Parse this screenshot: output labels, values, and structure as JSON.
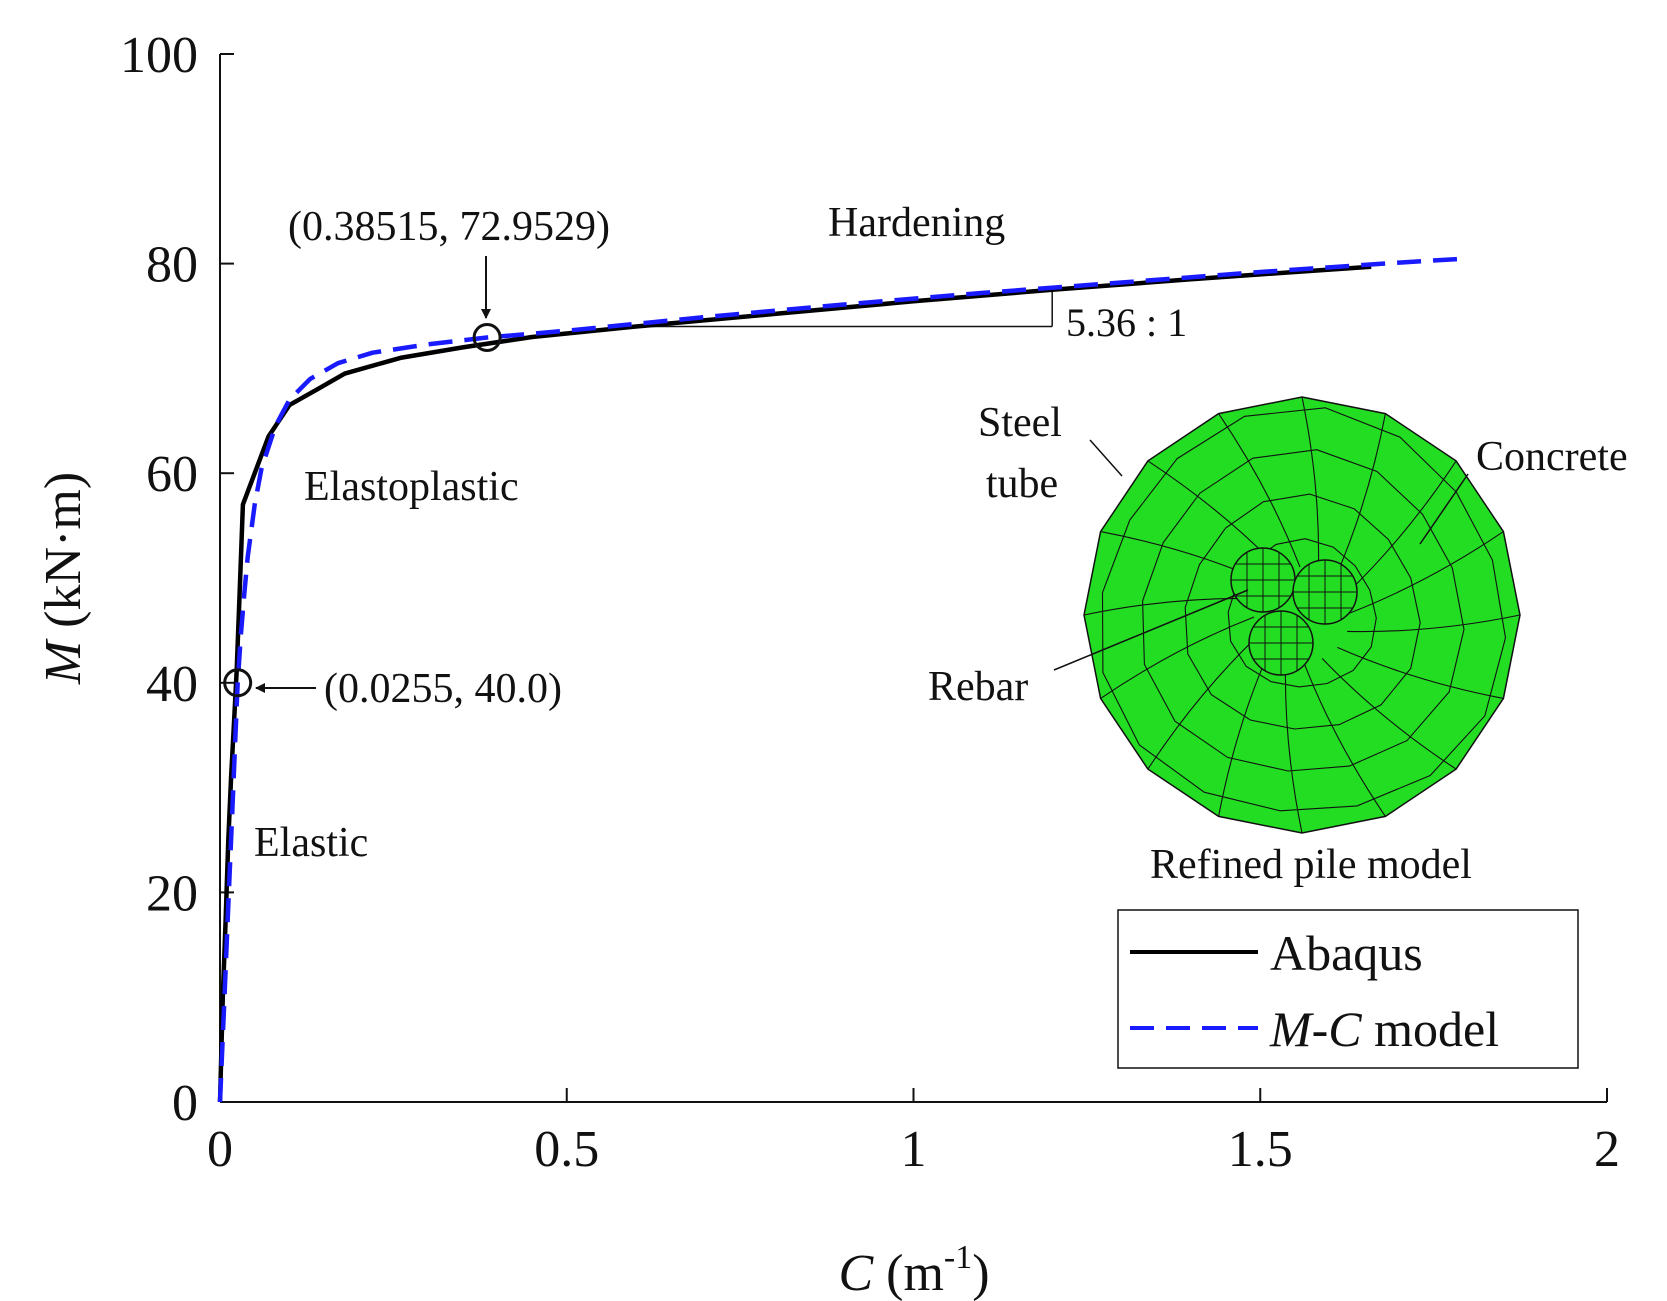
{
  "chart_data": {
    "type": "line",
    "title": "",
    "xlabel": {
      "symbol": "C",
      "unit_open": " (m",
      "unit_exp": "-1",
      "unit_close": ")"
    },
    "ylabel": {
      "symbol": "M",
      "unit": " (kN·m)"
    },
    "xlim": [
      0,
      2
    ],
    "ylim": [
      0,
      100
    ],
    "xticks": [
      0,
      0.5,
      1,
      1.5,
      2
    ],
    "xtick_labels": [
      "0",
      "0.5",
      "1",
      "1.5",
      "2"
    ],
    "yticks": [
      0,
      20,
      40,
      60,
      80,
      100
    ],
    "ytick_labels": [
      "0",
      "20",
      "40",
      "60",
      "80",
      "100"
    ],
    "grid": false,
    "legend_position": "bottom-right",
    "series": [
      {
        "name": "Abaqus",
        "color": "#000000",
        "dash": "solid",
        "x": [
          0,
          0.004,
          0.008,
          0.012,
          0.016,
          0.02,
          0.024,
          0.028,
          0.033,
          0.05,
          0.07,
          0.1,
          0.14,
          0.18,
          0.26,
          0.35,
          0.45,
          0.6,
          0.8,
          1.0,
          1.2,
          1.4,
          1.55,
          1.66
        ],
        "y": [
          0,
          10,
          17,
          25,
          31,
          36,
          41,
          48,
          57,
          60,
          63.5,
          66.5,
          68,
          69.5,
          71,
          72,
          73,
          74,
          75.2,
          76.4,
          77.5,
          78.5,
          79.2,
          79.7
        ]
      },
      {
        "name": "M-C model",
        "color": "#1a1aff",
        "dash": "dashed",
        "x": [
          0,
          0.006,
          0.012,
          0.018,
          0.024,
          0.0255,
          0.03,
          0.035,
          0.04,
          0.05,
          0.06,
          0.08,
          0.1,
          0.13,
          0.17,
          0.22,
          0.3,
          0.385,
          0.5,
          0.7,
          0.9,
          1.1,
          1.3,
          1.5,
          1.7,
          1.8
        ],
        "y": [
          0,
          9.4,
          18.8,
          28.2,
          37.6,
          40,
          44.5,
          48.5,
          52,
          57,
          60.5,
          64.5,
          67,
          69,
          70.5,
          71.5,
          72.3,
          72.95,
          73.6,
          74.9,
          76.1,
          77.2,
          78.2,
          79.2,
          80.1,
          80.5
        ]
      }
    ],
    "legend": {
      "entries": [
        {
          "label": "Abaqus",
          "italic_part": "",
          "rest": ""
        },
        {
          "label": "",
          "italic_part": "M-C",
          "rest": " model"
        }
      ]
    },
    "annotations": {
      "point_elastic_label": "(0.0255, 40.0)",
      "point_elastic": [
        0.0255,
        40.0
      ],
      "point_yield_label": "(0.38515, 72.9529)",
      "point_yield": [
        0.38515,
        72.9529
      ],
      "region_elastic": "Elastic",
      "region_elastoplastic": "Elastoplastic",
      "region_hardening": "Hardening",
      "slope_label": "5.36 : 1",
      "slope_triangle": {
        "x_start": 0.62,
        "x_end": 1.2,
        "y_base": 74.0
      }
    },
    "inset": {
      "title": "Refined pile model",
      "label_steel_1": "Steel",
      "label_steel_2": "tube",
      "label_concrete": "Concrete",
      "label_rebar": "Rebar",
      "fill_color": "#22dd22"
    }
  }
}
